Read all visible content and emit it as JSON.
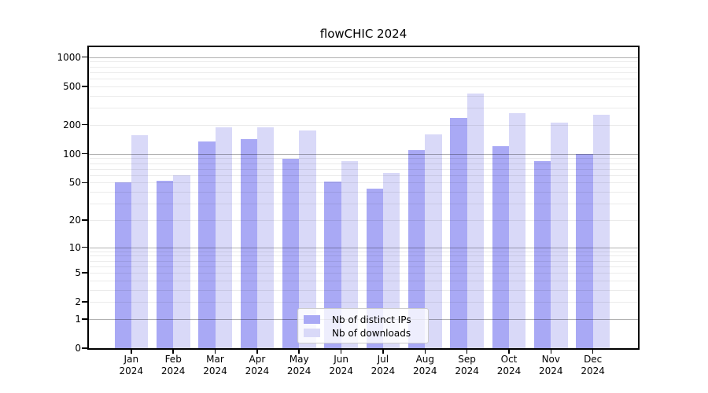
{
  "chart_data": {
    "type": "bar",
    "title": "flowCHIC 2024",
    "categories": [
      "Jan 2024",
      "Feb 2024",
      "Mar 2024",
      "Apr 2024",
      "May 2024",
      "Jun 2024",
      "Jul 2024",
      "Aug 2024",
      "Sep 2024",
      "Oct 2024",
      "Nov 2024",
      "Dec 2024"
    ],
    "series": [
      {
        "name": "Nb of distinct IPs",
        "color": "#a9a9f5",
        "values": [
          50,
          52,
          135,
          141,
          88,
          51,
          43,
          110,
          235,
          120,
          84,
          100
        ]
      },
      {
        "name": "Nb of downloads",
        "color": "#d9d9f8",
        "values": [
          157,
          60,
          187,
          189,
          176,
          84,
          63,
          158,
          420,
          263,
          210,
          254
        ]
      }
    ],
    "xlabel": "",
    "ylabel": "",
    "yscale": "log10(x+1)",
    "ylim": [
      0,
      1250
    ],
    "ytick_labels": [
      "0",
      "1",
      "2",
      "5",
      "10",
      "20",
      "50",
      "100",
      "200",
      "500",
      "1000"
    ],
    "ytick_values": [
      0,
      1,
      2,
      5,
      10,
      20,
      50,
      100,
      200,
      500,
      1000
    ],
    "grid": "horizontal major and log-minor gridlines, drawn over bars",
    "legend_position": "lower center"
  },
  "style_colors": {
    "bar_ips": "#a9a9f5",
    "bar_downloads": "#d9d9f8",
    "major_gridline": "rgba(0,0,0,0.30)",
    "minor_gridline": "rgba(0,0,0,0.08)",
    "spine": "#000000",
    "background": "#ffffff"
  }
}
